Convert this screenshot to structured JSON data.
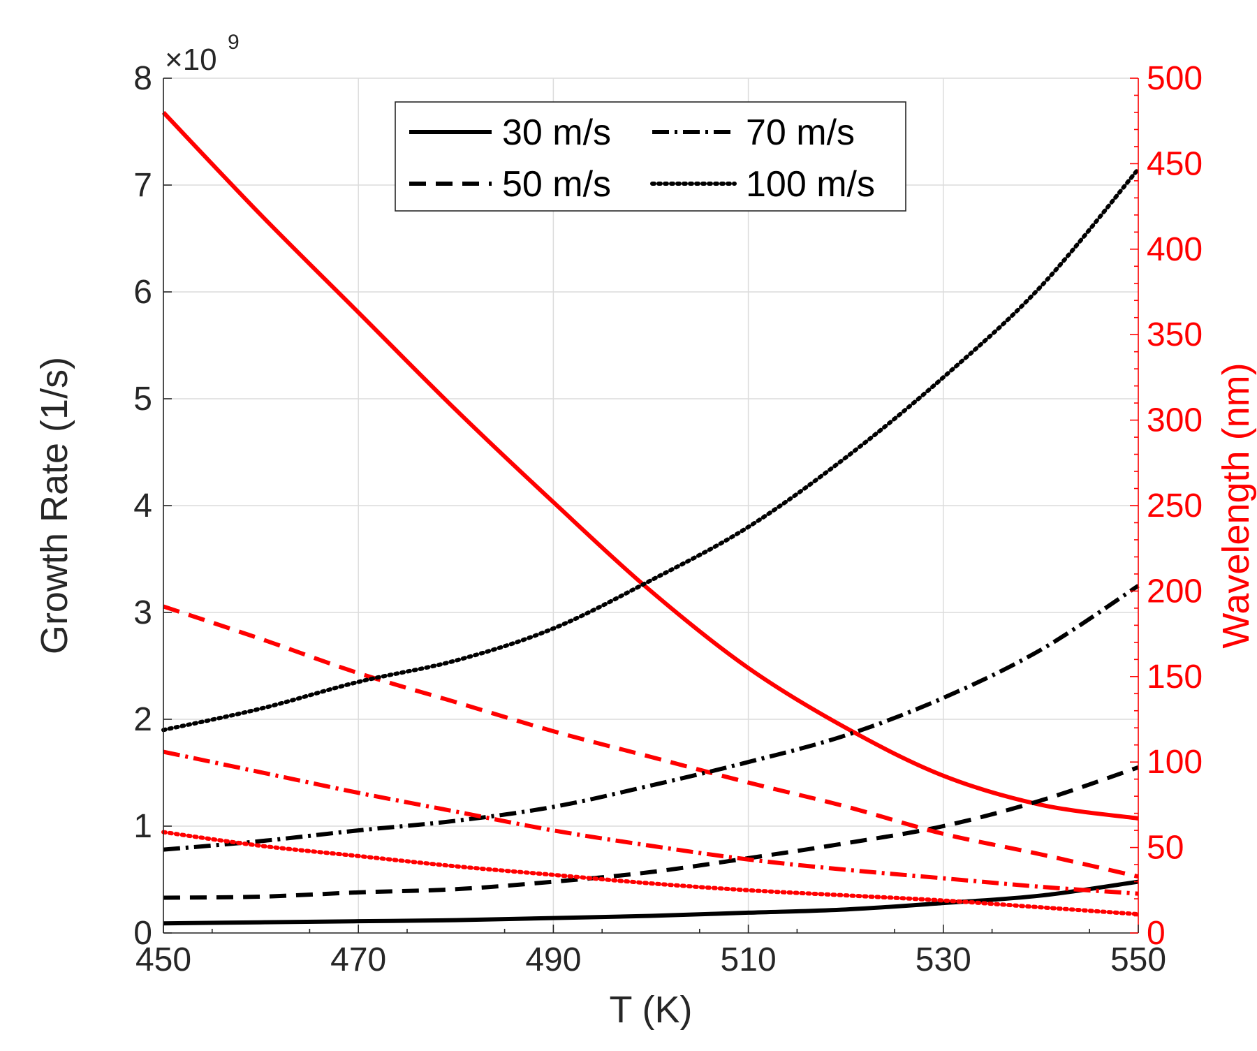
{
  "chart_data": {
    "type": "line",
    "xlabel": "T (K)",
    "ylabel_left": "Growth Rate (1/s)",
    "ylabel_right": "Wavelength (nm)",
    "left_exponent_label": {
      "prefix": "×10",
      "exponent": "9"
    },
    "xlim": [
      450,
      550
    ],
    "ylim_left": [
      0,
      8
    ],
    "ylim_right": [
      0,
      500
    ],
    "x_ticks": [
      450,
      470,
      490,
      510,
      530,
      550
    ],
    "x_tick_labels": [
      "450",
      "470",
      "490",
      "510",
      "530",
      "550"
    ],
    "y_ticks_left": [
      0,
      1,
      2,
      3,
      4,
      5,
      6,
      7,
      8
    ],
    "y_tick_labels_left": [
      "0",
      "1",
      "2",
      "3",
      "4",
      "5",
      "6",
      "7",
      "8"
    ],
    "y_ticks_right": [
      0,
      50,
      100,
      150,
      200,
      250,
      300,
      350,
      400,
      450,
      500
    ],
    "y_tick_labels_right": [
      "0",
      "50",
      "100",
      "150",
      "200",
      "250",
      "300",
      "350",
      "400",
      "450",
      "500"
    ],
    "x": [
      450,
      460,
      470,
      480,
      490,
      500,
      510,
      520,
      530,
      540,
      550
    ],
    "grid": true,
    "legend_location": "top-center",
    "colors": {
      "growth": "#000000",
      "wavelength": "#ff0000",
      "axis_left": "#262626",
      "axis_right": "#ff0000"
    },
    "series": [
      {
        "name": "30 m/s",
        "style": "solid",
        "growth_rate": [
          0.09,
          0.1,
          0.11,
          0.12,
          0.14,
          0.16,
          0.19,
          0.22,
          0.28,
          0.35,
          0.48
        ],
        "wavelength": [
          480,
          420,
          363,
          306,
          252,
          200,
          155,
          120,
          92,
          75,
          67
        ]
      },
      {
        "name": "50 m/s",
        "style": "dashed",
        "growth_rate": [
          0.33,
          0.34,
          0.38,
          0.41,
          0.48,
          0.57,
          0.7,
          0.84,
          1.0,
          1.24,
          1.55
        ],
        "wavelength": [
          191,
          172,
          152,
          135,
          118,
          103,
          88,
          74,
          58,
          46,
          33
        ]
      },
      {
        "name": "70 m/s",
        "style": "dashdot",
        "growth_rate": [
          0.78,
          0.86,
          0.96,
          1.05,
          1.18,
          1.38,
          1.6,
          1.85,
          2.2,
          2.65,
          3.25
        ],
        "wavelength": [
          106,
          94,
          82,
          71,
          60,
          51,
          43,
          37,
          32,
          27,
          23
        ]
      },
      {
        "name": "100 m/s",
        "style": "dotted",
        "growth_rate": [
          1.9,
          2.1,
          2.35,
          2.55,
          2.85,
          3.3,
          3.8,
          4.45,
          5.2,
          6.05,
          7.15
        ],
        "wavelength": [
          59,
          51,
          45,
          39,
          34,
          29,
          25,
          22,
          19,
          15,
          11
        ]
      }
    ]
  }
}
